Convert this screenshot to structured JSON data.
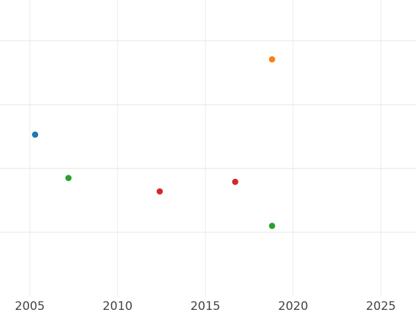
{
  "chart_data": {
    "type": "scatter",
    "title": "",
    "xlabel": "",
    "ylabel": "",
    "xlim": [
      2003.3,
      2027.0
    ],
    "ylim": [
      0,
      4.64
    ],
    "grid": true,
    "x_ticks": [
      2005,
      2010,
      2015,
      2020,
      2025
    ],
    "x_tick_labels": [
      "2005",
      "2010",
      "2015",
      "2020",
      "2025"
    ],
    "y_gridlines": [
      1,
      2,
      3,
      4
    ],
    "points": [
      {
        "x": 2005.3,
        "y": 2.53,
        "color": "#1f77b4"
      },
      {
        "x": 2007.2,
        "y": 1.85,
        "color": "#2ca02c"
      },
      {
        "x": 2012.4,
        "y": 1.64,
        "color": "#d62728"
      },
      {
        "x": 2016.7,
        "y": 1.79,
        "color": "#d62728"
      },
      {
        "x": 2018.8,
        "y": 3.71,
        "color": "#ff7f0e"
      },
      {
        "x": 2018.8,
        "y": 1.1,
        "color": "#2ca02c"
      }
    ]
  }
}
